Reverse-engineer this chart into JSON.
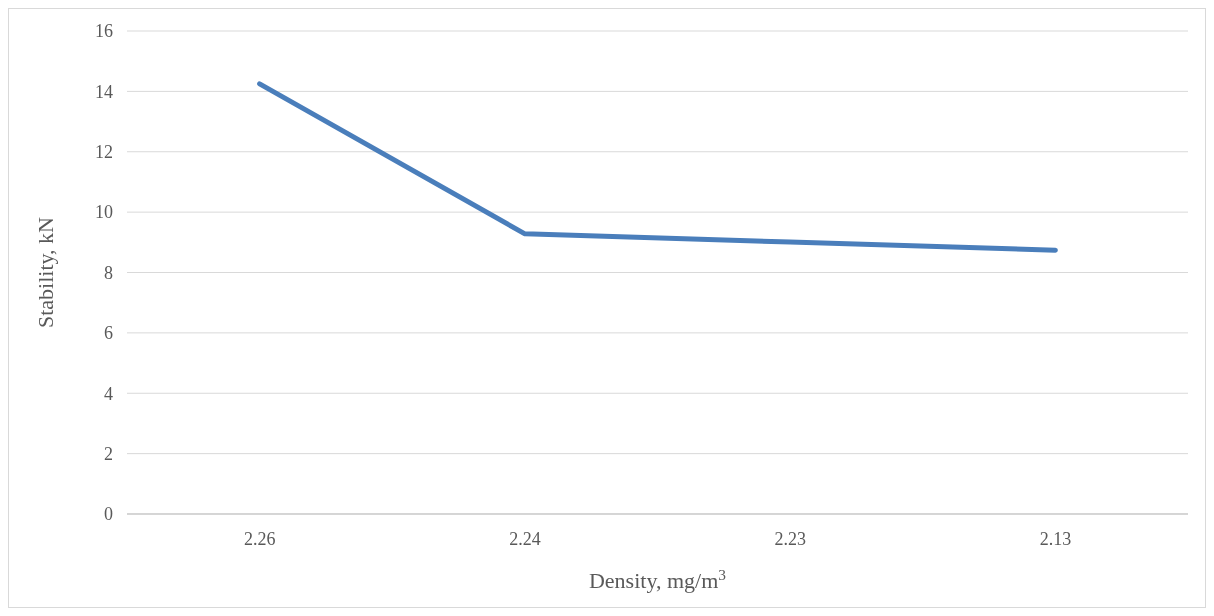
{
  "chart_data": {
    "type": "line",
    "xlabel": "Density, mg/m$^{3}$",
    "ylabel": "Stability, kN",
    "categories": [
      "2.26",
      "2.24",
      "2.23",
      "2.13"
    ],
    "series": [
      {
        "color": "#4a7ebb",
        "values": [
          14.25,
          9.28,
          9.01,
          8.74
        ]
      }
    ],
    "ylim": [
      0,
      16
    ],
    "yticks": [
      0,
      2,
      4,
      6,
      8,
      10,
      12,
      14,
      16
    ],
    "grid": "y",
    "marker": "none",
    "line_style": "solid"
  }
}
